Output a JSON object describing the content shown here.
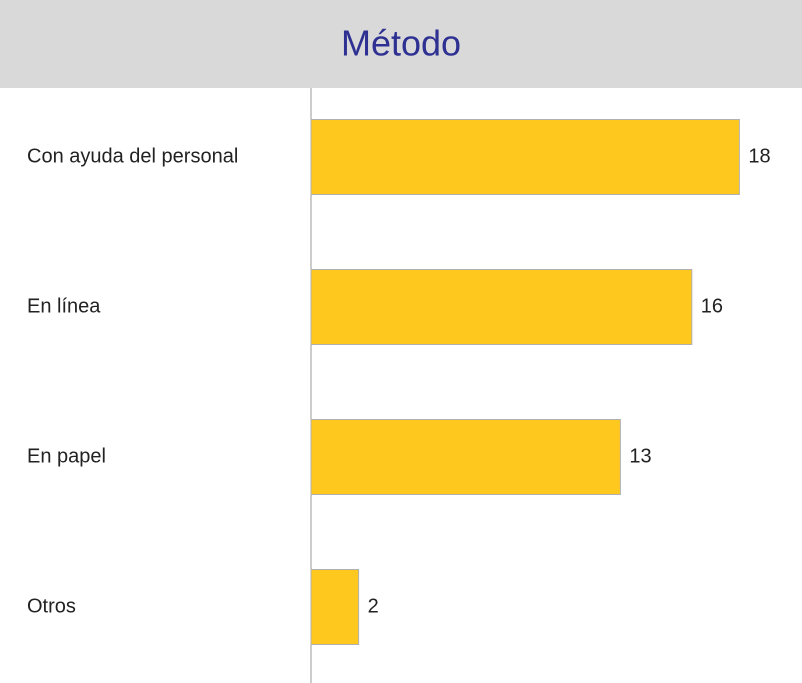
{
  "chart_data": {
    "type": "bar",
    "orientation": "horizontal",
    "title": "Método",
    "categories": [
      "Con ayuda del personal",
      "En línea",
      "En papel",
      "Otros"
    ],
    "values": [
      18,
      16,
      13,
      2
    ],
    "color": "#ffc81e"
  }
}
